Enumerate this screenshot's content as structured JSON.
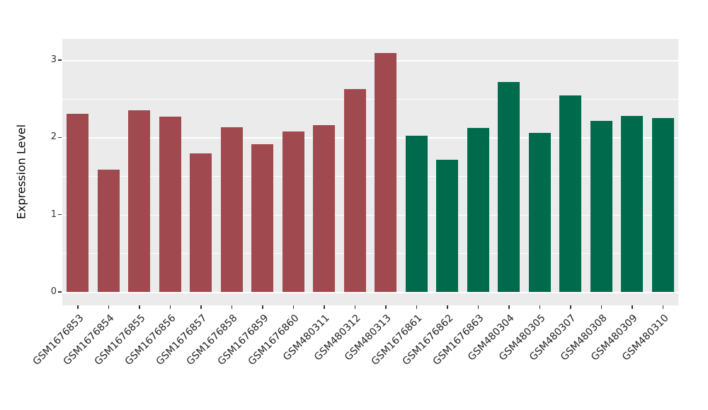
{
  "chart_data": {
    "type": "bar",
    "title": "",
    "xlabel": "",
    "ylabel": "Expression Level",
    "categories": [
      "GSM1676853",
      "GSM1676854",
      "GSM1676855",
      "GSM1676856",
      "GSM1676857",
      "GSM1676858",
      "GSM1676859",
      "GSM1676860",
      "GSM480311",
      "GSM480312",
      "GSM480313",
      "GSM1676861",
      "GSM1676862",
      "GSM1676863",
      "GSM480304",
      "GSM480305",
      "GSM480307",
      "GSM480308",
      "GSM480309",
      "GSM480310"
    ],
    "values": [
      2.31,
      1.58,
      2.35,
      2.27,
      1.79,
      2.13,
      1.91,
      2.08,
      2.16,
      2.63,
      3.09,
      2.02,
      1.71,
      2.12,
      2.72,
      2.06,
      2.54,
      2.21,
      2.28,
      2.25
    ],
    "group": [
      0,
      0,
      0,
      0,
      0,
      0,
      0,
      0,
      0,
      0,
      0,
      1,
      1,
      1,
      1,
      1,
      1,
      1,
      1,
      1
    ],
    "group_colors": [
      "#A04A50",
      "#006B4C"
    ],
    "yticks": [
      0,
      1,
      2,
      3
    ],
    "minor_yticks": [
      0.5,
      1.5,
      2.5
    ],
    "ylim": [
      0,
      3.27
    ],
    "grid": "on",
    "legend": "none",
    "panel_background": "#EBEBEB",
    "gridline_color": "#FFFFFF"
  }
}
